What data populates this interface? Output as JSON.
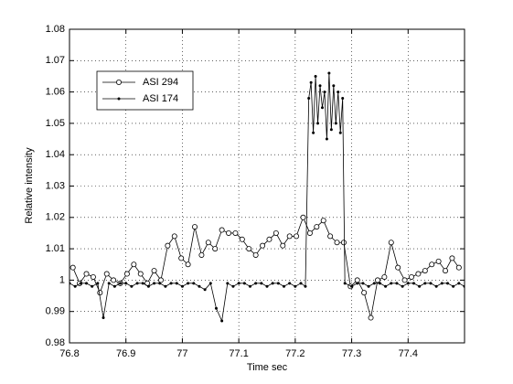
{
  "chart_data": {
    "type": "line",
    "xlabel": "Time sec",
    "ylabel": "Relative intensity",
    "xlim": [
      76.8,
      77.5
    ],
    "xticks": [
      76.8,
      76.9,
      77,
      77.1,
      77.2,
      77.3,
      77.4
    ],
    "ylim": [
      0.98,
      1.08
    ],
    "yticks": [
      0.98,
      0.99,
      1,
      1.01,
      1.02,
      1.03,
      1.04,
      1.05,
      1.06,
      1.07,
      1.08
    ],
    "grid": true,
    "legend": "upper left",
    "series": [
      {
        "name": "ASI 294",
        "color": "#000000",
        "marker": "circle",
        "x": [
          76.806,
          76.818,
          76.83,
          76.842,
          76.854,
          76.866,
          76.878,
          76.89,
          76.902,
          76.914,
          76.926,
          76.938,
          76.95,
          76.962,
          76.974,
          76.986,
          76.998,
          77.01,
          77.022,
          77.034,
          77.046,
          77.058,
          77.07,
          77.082,
          77.094,
          77.106,
          77.118,
          77.13,
          77.142,
          77.154,
          77.166,
          77.178,
          77.19,
          77.202,
          77.214,
          77.226,
          77.238,
          77.25,
          77.262,
          77.274,
          77.286,
          77.298,
          77.31,
          77.322,
          77.334,
          77.346,
          77.358,
          77.37,
          77.382,
          77.394,
          77.406,
          77.418,
          77.43,
          77.442,
          77.454,
          77.466,
          77.478,
          77.49
        ],
        "values": [
          1.004,
          0.999,
          1.002,
          1.001,
          0.996,
          1.002,
          1.0,
          0.999,
          1.002,
          1.005,
          1.002,
          0.999,
          1.003,
          1.0,
          1.011,
          1.014,
          1.007,
          1.005,
          1.017,
          1.008,
          1.012,
          1.01,
          1.016,
          1.015,
          1.015,
          1.013,
          1.01,
          1.008,
          1.011,
          1.013,
          1.015,
          1.011,
          1.014,
          1.014,
          1.02,
          1.015,
          1.017,
          1.019,
          1.014,
          1.012,
          1.012,
          0.998,
          1.0,
          0.996,
          0.988,
          1.0,
          1.001,
          1.012,
          1.004,
          1.0,
          1.001,
          1.002,
          1.003,
          1.005,
          1.006,
          1.003,
          1.007,
          1.004
        ]
      },
      {
        "name": "ASI 174",
        "color": "#000000",
        "marker": "dot",
        "x": [
          76.8,
          76.81,
          76.82,
          76.83,
          76.84,
          76.85,
          76.86,
          76.87,
          76.88,
          76.89,
          76.9,
          76.91,
          76.92,
          76.93,
          76.94,
          76.95,
          76.96,
          76.97,
          76.98,
          76.99,
          77.0,
          77.01,
          77.02,
          77.03,
          77.04,
          77.05,
          77.06,
          77.07,
          77.08,
          77.09,
          77.1,
          77.11,
          77.12,
          77.13,
          77.14,
          77.15,
          77.16,
          77.17,
          77.18,
          77.19,
          77.2,
          77.21,
          77.218,
          77.224,
          77.228,
          77.232,
          77.236,
          77.24,
          77.244,
          77.248,
          77.252,
          77.256,
          77.26,
          77.264,
          77.268,
          77.272,
          77.276,
          77.28,
          77.284,
          77.288,
          77.3,
          77.31,
          77.32,
          77.33,
          77.34,
          77.35,
          77.36,
          77.37,
          77.38,
          77.39,
          77.4,
          77.41,
          77.42,
          77.43,
          77.44,
          77.45,
          77.46,
          77.47,
          77.48,
          77.49,
          77.5
        ],
        "values": [
          0.999,
          0.998,
          0.999,
          0.999,
          0.998,
          0.999,
          0.988,
          0.999,
          0.998,
          0.999,
          0.999,
          0.998,
          0.999,
          0.999,
          0.998,
          0.999,
          0.999,
          0.998,
          0.999,
          0.999,
          0.998,
          0.999,
          0.999,
          0.998,
          0.997,
          0.999,
          0.991,
          0.987,
          0.999,
          0.998,
          0.999,
          0.999,
          0.998,
          0.999,
          0.999,
          0.998,
          0.999,
          0.999,
          0.998,
          0.999,
          0.998,
          0.999,
          0.998,
          1.058,
          1.063,
          1.047,
          1.065,
          1.05,
          1.062,
          1.055,
          1.06,
          1.045,
          1.066,
          1.048,
          1.062,
          1.05,
          1.06,
          1.047,
          1.058,
          0.999,
          0.998,
          0.999,
          0.999,
          0.998,
          0.999,
          0.999,
          0.998,
          0.999,
          0.999,
          0.998,
          0.999,
          0.999,
          0.998,
          0.999,
          0.999,
          0.998,
          0.999,
          0.999,
          0.998,
          0.999,
          0.998
        ]
      }
    ]
  }
}
